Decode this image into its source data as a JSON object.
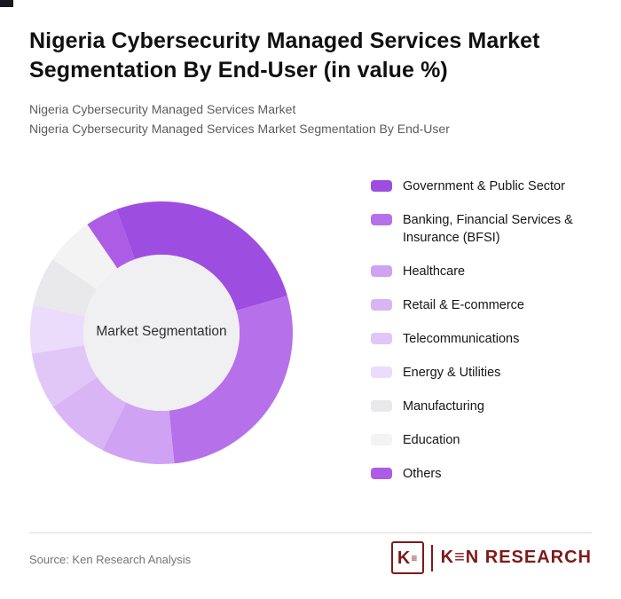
{
  "page": {
    "title_line1": "Nigeria Cybersecurity Managed Services Market",
    "title_line2": "Segmentation By End-User (in value %)",
    "subtitle_line1": "Nigeria Cybersecurity Managed Services Market",
    "subtitle_line2": "Nigeria Cybersecurity Managed Services Market Segmentation By End-User",
    "source": "Source: Ken Research Analysis"
  },
  "logo": {
    "box_letter": "K",
    "box_lines": "≡",
    "wordmark": "K≡N RESEARCH",
    "color": "#7e1a1a"
  },
  "chart_data": {
    "type": "pie",
    "subtype": "donut",
    "title": "Nigeria Cybersecurity Managed Services Market Segmentation By End-User (in value %)",
    "center_label": "Market Segmentation",
    "units": "% of value",
    "legend_position": "right",
    "start_angle_deg": -20,
    "direction": "clockwise",
    "center_fill": "#f0eff2",
    "segments": [
      {
        "label": "Government & Public Sector",
        "value": 26,
        "color": "#9d4ee0"
      },
      {
        "label": "Banking, Financial Services & Insurance (BFSI)",
        "value": 28,
        "color": "#b671ea"
      },
      {
        "label": "Healthcare",
        "value": 9,
        "color": "#cfa2f3"
      },
      {
        "label": "Retail & E-commerce",
        "value": 8,
        "color": "#d9b5f6"
      },
      {
        "label": "Telecommunications",
        "value": 7,
        "color": "#e1c6f8"
      },
      {
        "label": "Energy & Utilities",
        "value": 6,
        "color": "#ecdcfb"
      },
      {
        "label": "Manufacturing",
        "value": 6,
        "color": "#e9e9eb"
      },
      {
        "label": "Education",
        "value": 6,
        "color": "#f3f3f3"
      },
      {
        "label": "Others",
        "value": 4,
        "color": "#ad5ce6"
      }
    ]
  }
}
